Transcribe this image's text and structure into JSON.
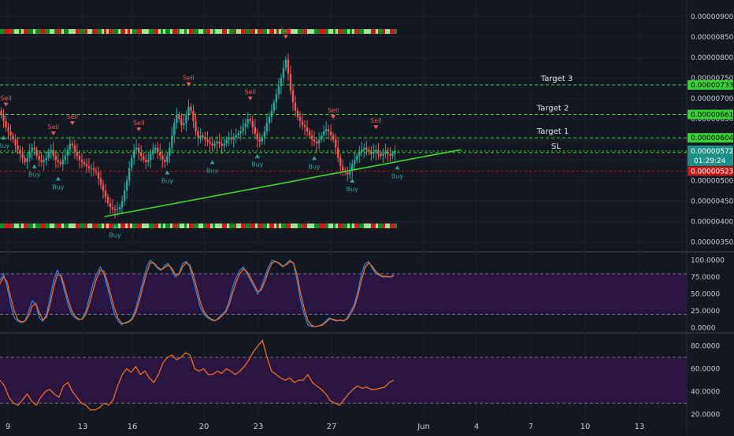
{
  "theme": {
    "background": "#131722",
    "grid": "#1e2230",
    "text": "#c7cbd4",
    "up": "#26a69a",
    "down": "#ef5350",
    "trendline": "#3bd92b",
    "level_line": "#37d434",
    "sl_line": "#b0201c",
    "last_price_bg": "#2962ff",
    "oscillator_band": "#2a1540",
    "stoch_k": "#2c82dd",
    "stoch_d": "#f06a1f",
    "rsi": "#f06a1f"
  },
  "chart_data": [
    {
      "type": "candlestick",
      "title": "",
      "ylim": [
        3.3e-06,
        9.4e-06
      ],
      "y_ticks": [
        "0.00000350",
        "0.00000400",
        "0.00000450",
        "0.00000500",
        "0.00000550",
        "0.00000600",
        "0.00000650",
        "0.00000700",
        "0.00000750",
        "0.00000800",
        "0.00000850",
        "0.00000900"
      ],
      "x_ticks": [
        "9",
        "13",
        "16",
        "20",
        "23",
        "27",
        "Jun",
        "4",
        "7",
        "10",
        "13"
      ],
      "close_series": [
        6.6,
        6.45,
        6.3,
        6.2,
        6.1,
        6.0,
        5.85,
        5.75,
        5.65,
        5.55,
        5.45,
        5.55,
        5.7,
        5.8,
        5.75,
        5.6,
        5.5,
        5.45,
        5.5,
        5.55,
        5.7,
        5.75,
        5.6,
        5.5,
        5.45,
        5.4,
        5.5,
        5.6,
        5.75,
        5.9,
        5.85,
        5.7,
        5.6,
        5.5,
        5.45,
        5.4,
        5.35,
        5.3,
        5.3,
        5.25,
        5.2,
        5.05,
        4.9,
        4.75,
        4.6,
        4.45,
        4.35,
        4.3,
        4.28,
        4.3,
        4.35,
        4.5,
        4.75,
        5.0,
        5.3,
        5.55,
        5.75,
        5.8,
        5.7,
        5.6,
        5.5,
        5.45,
        5.5,
        5.65,
        5.75,
        5.8,
        5.7,
        5.6,
        5.5,
        5.45,
        5.6,
        5.8,
        6.1,
        6.4,
        6.6,
        6.5,
        6.35,
        6.4,
        6.6,
        6.8,
        6.7,
        6.45,
        6.2,
        6.05,
        6.1,
        6.05,
        6.0,
        5.95,
        5.9,
        5.85,
        5.9,
        5.95,
        5.9,
        5.85,
        5.9,
        6.0,
        6.05,
        6.0,
        6.05,
        6.1,
        6.15,
        6.2,
        6.3,
        6.4,
        6.5,
        6.45,
        6.3,
        6.15,
        6.0,
        5.95,
        6.05,
        6.2,
        6.4,
        6.55,
        6.7,
        6.9,
        7.1,
        7.3,
        7.5,
        7.75,
        7.95,
        7.6,
        7.2,
        6.9,
        6.7,
        6.55,
        6.45,
        6.35,
        6.3,
        6.2,
        6.1,
        6.0,
        5.95,
        5.9,
        6.0,
        6.1,
        6.2,
        6.25,
        6.2,
        6.1,
        6.0,
        5.8,
        5.55,
        5.35,
        5.25,
        5.2,
        5.15,
        5.25,
        5.4,
        5.5,
        5.6,
        5.7,
        5.75,
        5.8,
        5.75,
        5.7,
        5.65,
        5.7,
        5.75,
        5.65,
        5.6,
        5.65,
        5.7,
        5.65,
        5.6,
        5.65,
        5.72
      ],
      "ohlc_labels": {
        "last": "0.00000572",
        "countdown": "01:29:24",
        "sl": "0.00000568"
      },
      "levels": [
        {
          "name": "Target 3",
          "value": 7.33,
          "tag": "0.00000733"
        },
        {
          "name": "Target 2",
          "value": 6.61,
          "tag": "0.00000661"
        },
        {
          "name": "Target 1",
          "value": 6.04,
          "tag": "0.00000604"
        },
        {
          "name": "SL",
          "value": 5.68,
          "tag": "0.00000568"
        }
      ],
      "sl_red": {
        "value": 5.23,
        "tag": "0.00000523"
      },
      "signals": [
        {
          "label": "Sell",
          "bar": 2,
          "dir": "down"
        },
        {
          "label": "Buy",
          "bar": 1,
          "dir": "up"
        },
        {
          "label": "Sell",
          "bar": 22,
          "dir": "down"
        },
        {
          "label": "Buy",
          "bar": 14,
          "dir": "up"
        },
        {
          "label": "Buy",
          "bar": 24,
          "dir": "up"
        },
        {
          "label": "Sell",
          "bar": 30,
          "dir": "down"
        },
        {
          "label": "Buy",
          "bar": 48,
          "dir": "up"
        },
        {
          "label": "Sell",
          "bar": 58,
          "dir": "down"
        },
        {
          "label": "Buy",
          "bar": 70,
          "dir": "up"
        },
        {
          "label": "Sell",
          "bar": 79,
          "dir": "down"
        },
        {
          "label": "Buy",
          "bar": 89,
          "dir": "up"
        },
        {
          "label": "Sell",
          "bar": 105,
          "dir": "down"
        },
        {
          "label": "Buy",
          "bar": 108,
          "dir": "up"
        },
        {
          "label": "Sell",
          "bar": 120,
          "dir": "down"
        },
        {
          "label": "Buy",
          "bar": 132,
          "dir": "up"
        },
        {
          "label": "Sell",
          "bar": 140,
          "dir": "down"
        },
        {
          "label": "Buy",
          "bar": 148,
          "dir": "up"
        },
        {
          "label": "Sell",
          "bar": 158,
          "dir": "down"
        },
        {
          "label": "Buy",
          "bar": 167,
          "dir": "up"
        }
      ]
    },
    {
      "type": "line",
      "y_ticks": [
        "0.0000",
        "25.0000",
        "50.0000",
        "75.0000",
        "100.0000"
      ],
      "ylim": [
        -5,
        110
      ],
      "band": [
        20,
        80
      ],
      "series": [
        {
          "values": [
            70,
            80,
            60,
            35,
            15,
            10,
            8,
            10,
            25,
            40,
            35,
            15,
            10,
            20,
            45,
            70,
            85,
            75,
            55,
            35,
            20,
            15,
            12,
            14,
            25,
            45,
            65,
            80,
            90,
            80,
            60,
            40,
            20,
            10,
            5,
            8,
            10,
            15,
            30,
            50,
            70,
            90,
            100,
            95,
            88,
            85,
            92,
            95,
            85,
            75,
            80,
            95,
            98,
            90,
            70,
            50,
            30,
            20,
            15,
            12,
            10,
            15,
            20,
            25,
            40,
            60,
            75,
            85,
            90,
            80,
            70,
            60,
            50,
            60,
            75,
            90,
            100,
            98,
            95,
            90,
            95,
            100,
            95,
            70,
            40,
            20,
            5,
            2,
            2,
            3,
            5,
            10,
            15,
            12,
            10,
            12,
            10,
            15,
            25,
            35,
            55,
            80,
            95,
            98,
            88,
            80,
            78,
            75,
            76,
            75,
            78
          ]
        },
        {
          "values": [
            65,
            75,
            68,
            45,
            25,
            12,
            9,
            10,
            18,
            32,
            36,
            22,
            12,
            16,
            35,
            60,
            78,
            78,
            62,
            42,
            26,
            17,
            13,
            13,
            20,
            36,
            56,
            73,
            85,
            84,
            68,
            48,
            28,
            14,
            7,
            7,
            9,
            13,
            24,
            42,
            62,
            82,
            96,
            96,
            90,
            86,
            89,
            93,
            88,
            79,
            79,
            90,
            96,
            93,
            78,
            58,
            38,
            24,
            17,
            13,
            11,
            13,
            18,
            23,
            34,
            52,
            68,
            80,
            87,
            83,
            74,
            64,
            54,
            56,
            69,
            84,
            96,
            98,
            96,
            91,
            93,
            98,
            96,
            78,
            50,
            28,
            11,
            4,
            2,
            3,
            4,
            8,
            13,
            13,
            11,
            11,
            11,
            13,
            21,
            31,
            48,
            71,
            89,
            96,
            91,
            83,
            79,
            76,
            76,
            75,
            77
          ]
        }
      ]
    },
    {
      "type": "line",
      "y_ticks": [
        "20.0000",
        "40.0000",
        "60.0000",
        "80.0000"
      ],
      "ylim": [
        15,
        90
      ],
      "band": [
        30,
        70
      ],
      "series": [
        {
          "values": [
            50,
            45,
            35,
            30,
            28,
            33,
            38,
            32,
            28,
            35,
            40,
            42,
            38,
            35,
            45,
            48,
            40,
            35,
            30,
            28,
            24,
            24,
            26,
            30,
            28,
            33,
            45,
            55,
            60,
            57,
            62,
            55,
            58,
            52,
            48,
            55,
            65,
            70,
            72,
            68,
            70,
            74,
            72,
            60,
            58,
            60,
            55,
            55,
            58,
            56,
            60,
            58,
            55,
            58,
            62,
            68,
            75,
            80,
            85,
            70,
            58,
            55,
            52,
            50,
            52,
            48,
            50,
            50,
            55,
            48,
            45,
            42,
            38,
            32,
            30,
            28,
            33,
            38,
            42,
            45,
            43,
            44,
            42,
            42,
            43,
            44,
            48,
            50
          ]
        }
      ]
    }
  ]
}
